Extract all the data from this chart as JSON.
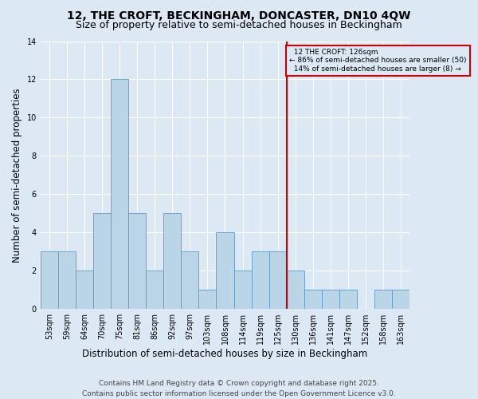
{
  "title": "12, THE CROFT, BECKINGHAM, DONCASTER, DN10 4QW",
  "subtitle": "Size of property relative to semi-detached houses in Beckingham",
  "xlabel": "Distribution of semi-detached houses by size in Beckingham",
  "ylabel": "Number of semi-detached properties",
  "categories": [
    "53sqm",
    "59sqm",
    "64sqm",
    "70sqm",
    "75sqm",
    "81sqm",
    "86sqm",
    "92sqm",
    "97sqm",
    "103sqm",
    "108sqm",
    "114sqm",
    "119sqm",
    "125sqm",
    "130sqm",
    "136sqm",
    "141sqm",
    "147sqm",
    "152sqm",
    "158sqm",
    "163sqm"
  ],
  "values": [
    3,
    3,
    2,
    5,
    12,
    5,
    2,
    5,
    3,
    1,
    4,
    2,
    3,
    3,
    2,
    1,
    1,
    1,
    0,
    1,
    1
  ],
  "bar_color": "#bad4e8",
  "bar_edge_color": "#5b9bd5",
  "reference_line_x": 13.5,
  "reference_label": "12 THE CROFT: 126sqm",
  "smaller_pct": 86,
  "smaller_count": 50,
  "larger_pct": 14,
  "larger_count": 8,
  "ylim": [
    0,
    14
  ],
  "yticks": [
    0,
    2,
    4,
    6,
    8,
    10,
    12,
    14
  ],
  "bg_color": "#dce9f5",
  "grid_color": "#ffffff",
  "annotation_box_color": "#cc0000",
  "footer": "Contains HM Land Registry data © Crown copyright and database right 2025.\nContains public sector information licensed under the Open Government Licence v3.0.",
  "title_fontsize": 10,
  "subtitle_fontsize": 9,
  "tick_fontsize": 7,
  "ylabel_fontsize": 8.5,
  "xlabel_fontsize": 8.5,
  "footer_fontsize": 6.5
}
